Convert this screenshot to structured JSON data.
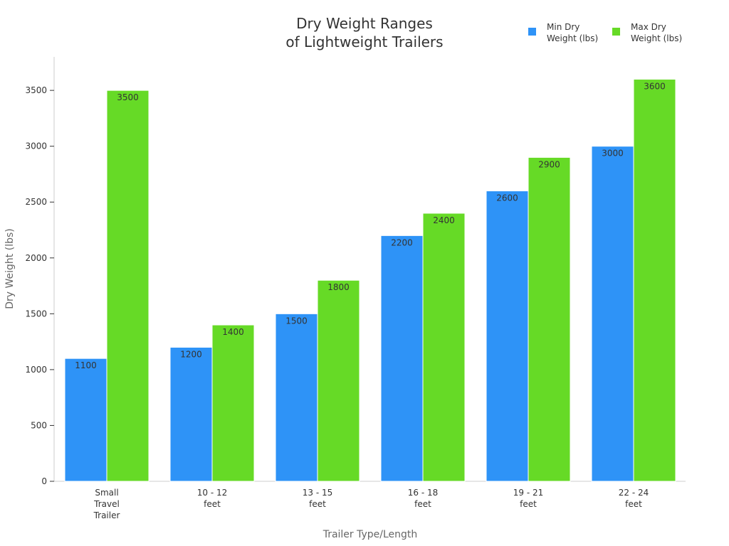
{
  "chart_data": {
    "type": "bar",
    "title": [
      "Dry Weight Ranges",
      "of Lightweight Trailers"
    ],
    "xlabel": "Trailer Type/Length",
    "ylabel": "Dry Weight (lbs)",
    "ylim": [
      0,
      3800
    ],
    "yticks": [
      0,
      500,
      1000,
      1500,
      2000,
      2500,
      3000,
      3500
    ],
    "categories": [
      [
        "Small",
        "Travel",
        "Trailer"
      ],
      [
        "10 - 12",
        "feet"
      ],
      [
        "13 - 15",
        "feet"
      ],
      [
        "16 - 18",
        "feet"
      ],
      [
        "19 - 21",
        "feet"
      ],
      [
        "22 - 24",
        "feet"
      ]
    ],
    "series": [
      {
        "name": [
          "Min Dry",
          "Weight (lbs)"
        ],
        "color": "#2e93f7",
        "values": [
          1100,
          1200,
          1500,
          2200,
          2600,
          3000
        ]
      },
      {
        "name": [
          "Max Dry",
          "Weight (lbs)"
        ],
        "color": "#66da26",
        "values": [
          3500,
          1400,
          1800,
          2400,
          2900,
          3600
        ]
      }
    ],
    "legend_position": "top-right",
    "grid": false
  }
}
